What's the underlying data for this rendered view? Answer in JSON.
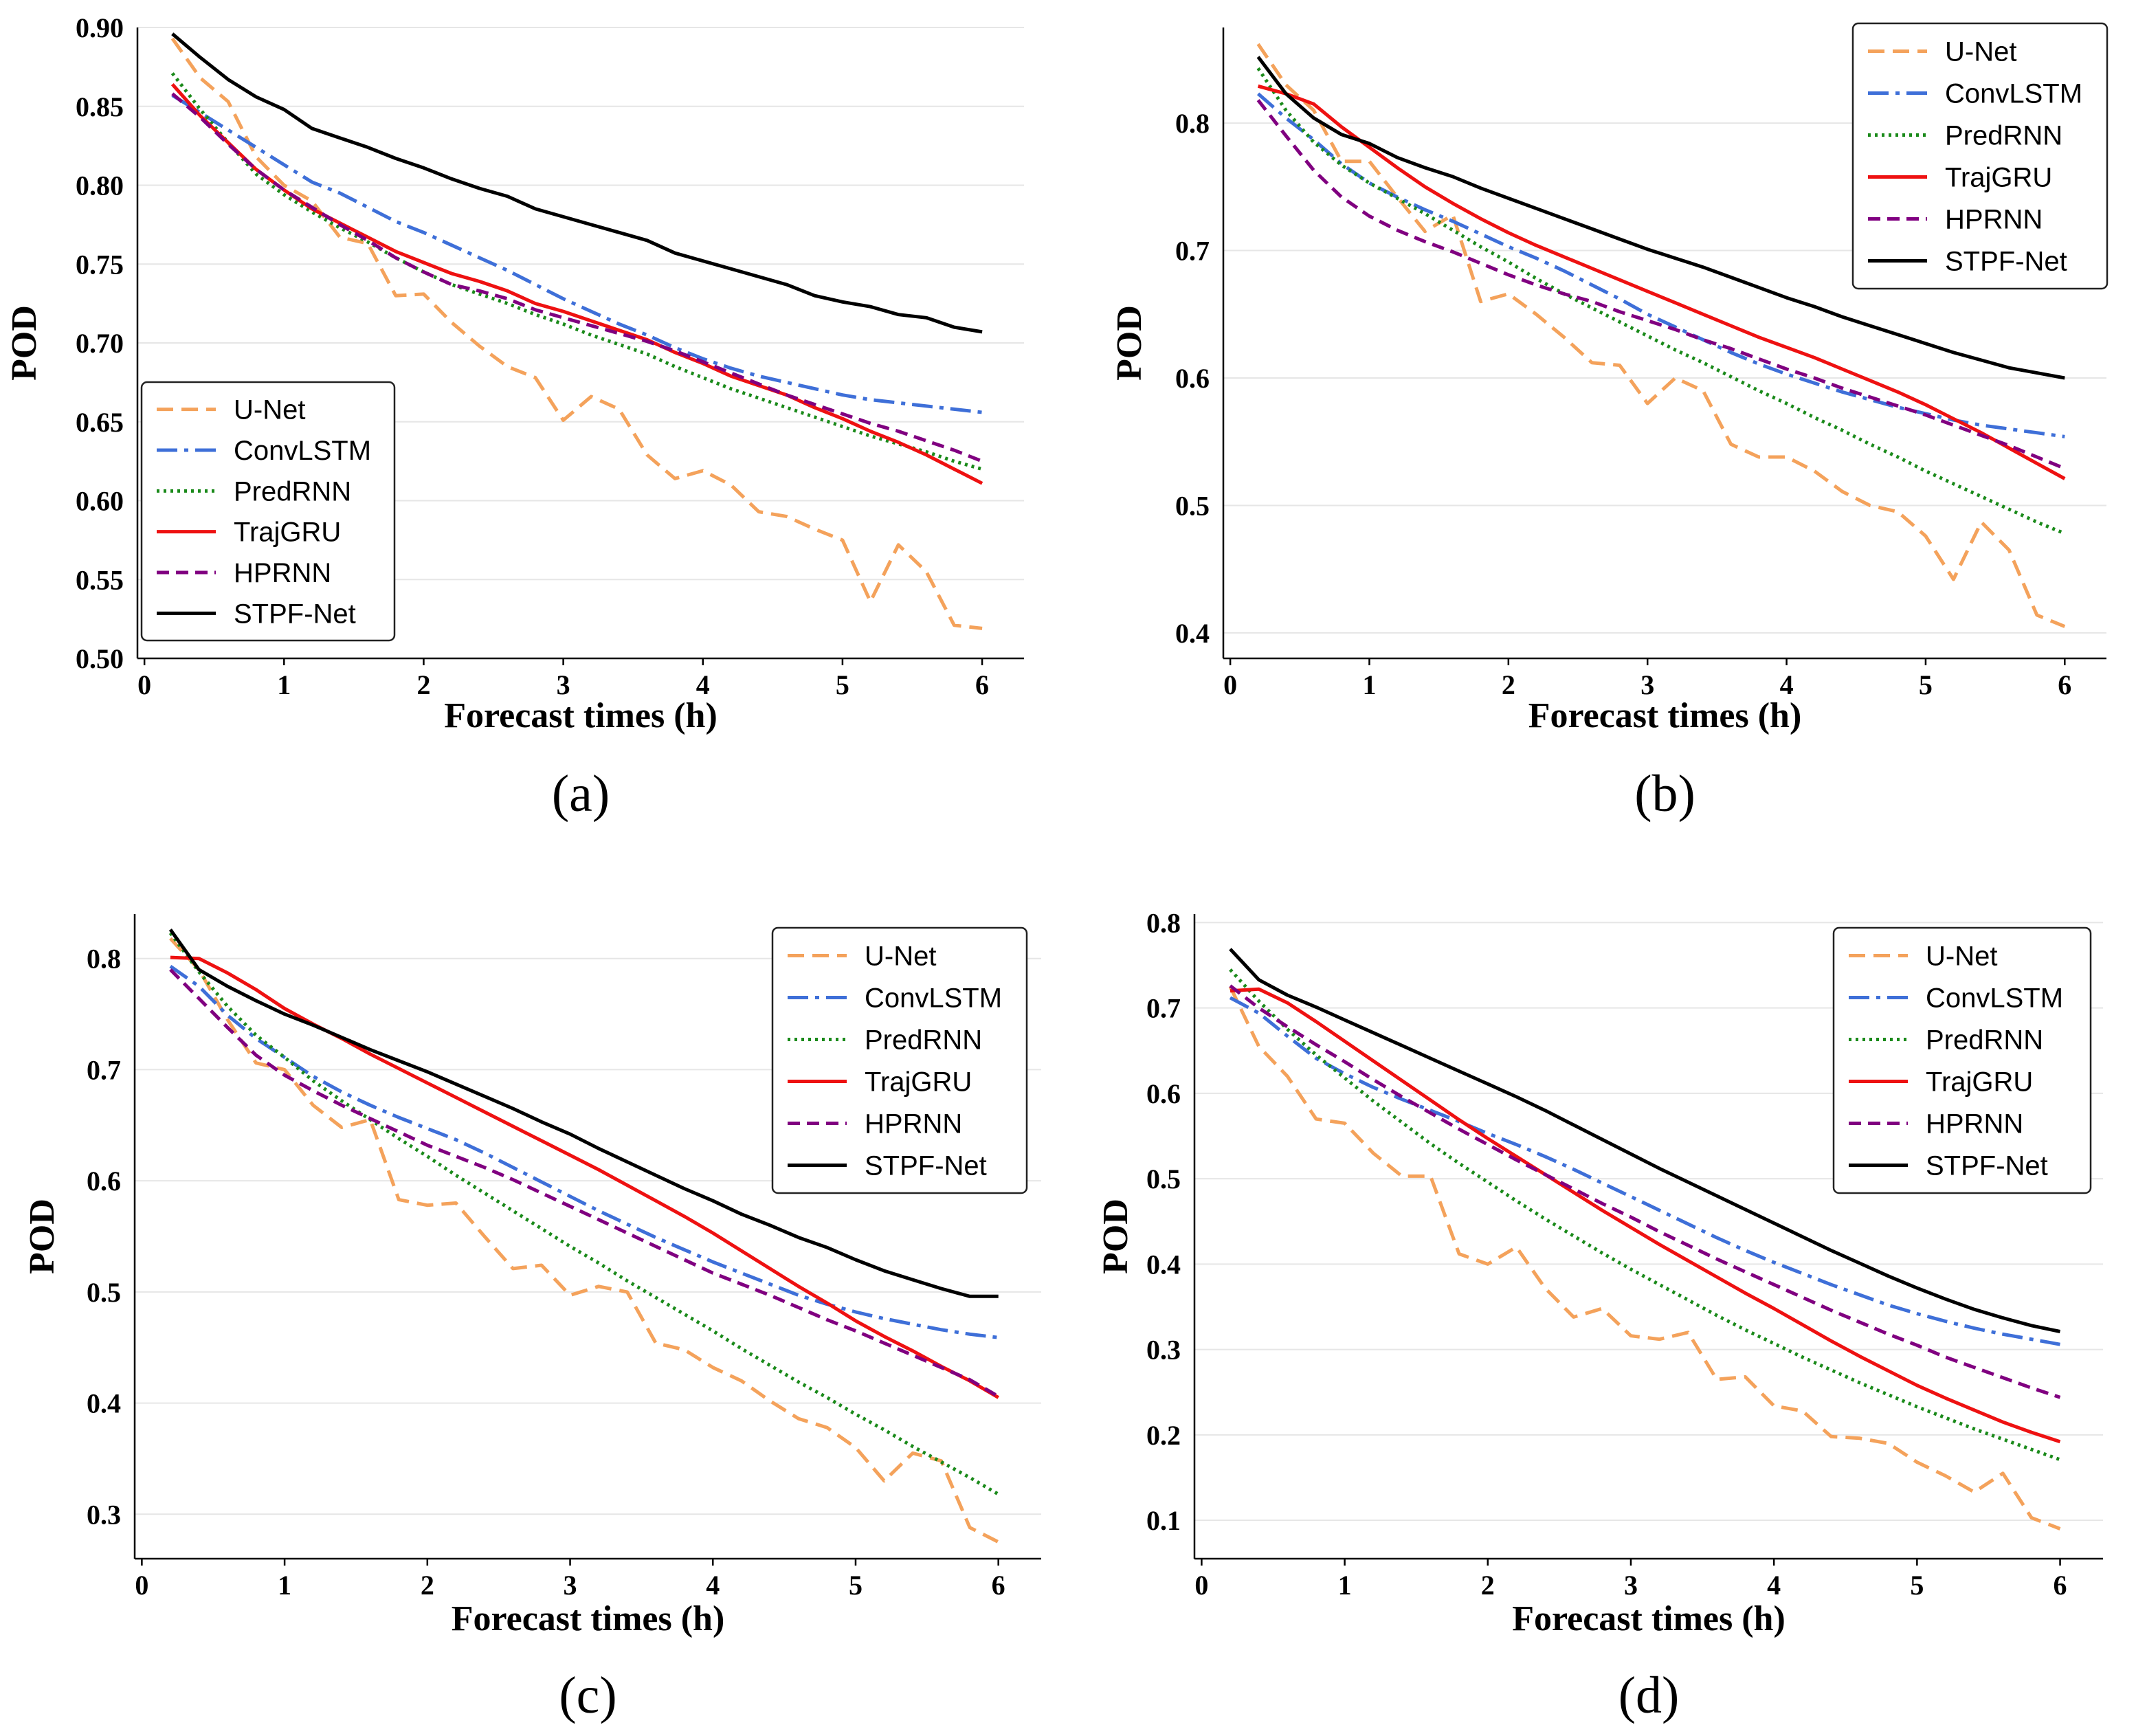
{
  "chart_data": [
    {
      "type": "line",
      "caption": "(a)",
      "xlabel": "Forecast times (h)",
      "ylabel": "POD",
      "xlim": [
        -0.05,
        6.3
      ],
      "ylim": [
        0.5,
        0.9
      ],
      "xticks": [
        "0",
        "1",
        "2",
        "3",
        "4",
        "5",
        "6"
      ],
      "yticks": [
        "0.50",
        "0.55",
        "0.60",
        "0.65",
        "0.70",
        "0.75",
        "0.80",
        "0.85",
        "0.90"
      ],
      "legend_position": "lower-left",
      "x": [
        0.2,
        0.4,
        0.6,
        0.8,
        1.0,
        1.2,
        1.4,
        1.6,
        1.8,
        2.0,
        2.2,
        2.4,
        2.6,
        2.8,
        3.0,
        3.2,
        3.4,
        3.6,
        3.8,
        4.0,
        4.2,
        4.4,
        4.6,
        4.8,
        5.0,
        5.2,
        5.4,
        5.6,
        5.8,
        6.0
      ],
      "series": [
        {
          "name": "U-Net",
          "values": [
            0.893,
            0.868,
            0.853,
            0.818,
            0.8,
            0.79,
            0.767,
            0.763,
            0.73,
            0.731,
            0.713,
            0.698,
            0.685,
            0.678,
            0.651,
            0.666,
            0.658,
            0.629,
            0.614,
            0.619,
            0.61,
            0.593,
            0.59,
            0.582,
            0.575,
            0.536,
            0.572,
            0.555,
            0.521,
            0.519
          ]
        },
        {
          "name": "ConvLSTM",
          "values": [
            0.857,
            0.846,
            0.835,
            0.824,
            0.813,
            0.802,
            0.795,
            0.786,
            0.777,
            0.77,
            0.762,
            0.754,
            0.746,
            0.737,
            0.728,
            0.72,
            0.712,
            0.705,
            0.697,
            0.69,
            0.684,
            0.679,
            0.675,
            0.671,
            0.667,
            0.664,
            0.662,
            0.66,
            0.658,
            0.656
          ]
        },
        {
          "name": "PredRNN",
          "values": [
            0.871,
            0.848,
            0.827,
            0.807,
            0.794,
            0.783,
            0.773,
            0.764,
            0.754,
            0.745,
            0.737,
            0.731,
            0.725,
            0.718,
            0.712,
            0.705,
            0.699,
            0.693,
            0.685,
            0.678,
            0.671,
            0.665,
            0.659,
            0.653,
            0.647,
            0.641,
            0.636,
            0.631,
            0.625,
            0.62
          ]
        },
        {
          "name": "TrajGRU",
          "values": [
            0.864,
            0.844,
            0.827,
            0.81,
            0.797,
            0.785,
            0.776,
            0.767,
            0.758,
            0.751,
            0.744,
            0.739,
            0.733,
            0.725,
            0.72,
            0.714,
            0.708,
            0.702,
            0.694,
            0.687,
            0.679,
            0.673,
            0.667,
            0.659,
            0.652,
            0.644,
            0.637,
            0.629,
            0.62,
            0.611
          ]
        },
        {
          "name": "HPRNN",
          "values": [
            0.858,
            0.843,
            0.826,
            0.81,
            0.797,
            0.786,
            0.775,
            0.765,
            0.754,
            0.745,
            0.737,
            0.733,
            0.728,
            0.721,
            0.716,
            0.711,
            0.706,
            0.701,
            0.695,
            0.688,
            0.681,
            0.674,
            0.667,
            0.661,
            0.655,
            0.649,
            0.644,
            0.638,
            0.632,
            0.625
          ]
        },
        {
          "name": "STPF-Net",
          "values": [
            0.896,
            0.881,
            0.867,
            0.856,
            0.848,
            0.836,
            0.83,
            0.824,
            0.817,
            0.811,
            0.804,
            0.798,
            0.793,
            0.785,
            0.78,
            0.775,
            0.77,
            0.765,
            0.757,
            0.752,
            0.747,
            0.742,
            0.737,
            0.73,
            0.726,
            0.723,
            0.718,
            0.716,
            0.71,
            0.707
          ]
        }
      ]
    },
    {
      "type": "line",
      "caption": "(b)",
      "xlabel": "Forecast times (h)",
      "ylabel": "POD",
      "xlim": [
        -0.05,
        6.3
      ],
      "ylim": [
        0.38,
        0.875
      ],
      "xticks": [
        "0",
        "1",
        "2",
        "3",
        "4",
        "5",
        "6"
      ],
      "yticks": [
        "0.4",
        "0.5",
        "0.6",
        "0.7",
        "0.8"
      ],
      "legend_position": "upper-right",
      "x": [
        0.2,
        0.4,
        0.6,
        0.8,
        1.0,
        1.2,
        1.4,
        1.6,
        1.8,
        2.0,
        2.2,
        2.4,
        2.6,
        2.8,
        3.0,
        3.2,
        3.4,
        3.6,
        3.8,
        4.0,
        4.2,
        4.4,
        4.6,
        4.8,
        5.0,
        5.2,
        5.4,
        5.6,
        5.8,
        6.0
      ],
      "series": [
        {
          "name": "U-Net",
          "values": [
            0.862,
            0.83,
            0.81,
            0.77,
            0.77,
            0.742,
            0.715,
            0.728,
            0.66,
            0.666,
            0.65,
            0.632,
            0.612,
            0.61,
            0.58,
            0.6,
            0.59,
            0.548,
            0.538,
            0.538,
            0.527,
            0.511,
            0.5,
            0.495,
            0.476,
            0.442,
            0.487,
            0.465,
            0.414,
            0.405
          ]
        },
        {
          "name": "ConvLSTM",
          "values": [
            0.823,
            0.804,
            0.787,
            0.768,
            0.753,
            0.742,
            0.732,
            0.723,
            0.713,
            0.703,
            0.694,
            0.684,
            0.673,
            0.662,
            0.65,
            0.64,
            0.63,
            0.62,
            0.611,
            0.603,
            0.596,
            0.589,
            0.583,
            0.577,
            0.572,
            0.567,
            0.563,
            0.56,
            0.557,
            0.554
          ]
        },
        {
          "name": "PredRNN",
          "values": [
            0.843,
            0.81,
            0.785,
            0.767,
            0.753,
            0.741,
            0.729,
            0.716,
            0.703,
            0.691,
            0.678,
            0.666,
            0.655,
            0.644,
            0.633,
            0.622,
            0.612,
            0.601,
            0.59,
            0.58,
            0.569,
            0.559,
            0.548,
            0.538,
            0.527,
            0.517,
            0.507,
            0.497,
            0.487,
            0.478
          ]
        },
        {
          "name": "TrajGRU",
          "values": [
            0.829,
            0.823,
            0.815,
            0.797,
            0.781,
            0.765,
            0.75,
            0.737,
            0.725,
            0.714,
            0.704,
            0.695,
            0.686,
            0.677,
            0.668,
            0.659,
            0.65,
            0.641,
            0.632,
            0.624,
            0.616,
            0.607,
            0.598,
            0.589,
            0.579,
            0.568,
            0.557,
            0.545,
            0.533,
            0.521
          ]
        },
        {
          "name": "HPRNN",
          "values": [
            0.818,
            0.79,
            0.763,
            0.742,
            0.727,
            0.716,
            0.707,
            0.699,
            0.69,
            0.681,
            0.673,
            0.666,
            0.66,
            0.652,
            0.645,
            0.638,
            0.63,
            0.623,
            0.615,
            0.607,
            0.6,
            0.592,
            0.585,
            0.578,
            0.571,
            0.563,
            0.555,
            0.547,
            0.538,
            0.529
          ]
        },
        {
          "name": "STPF-Net",
          "values": [
            0.852,
            0.823,
            0.804,
            0.791,
            0.784,
            0.773,
            0.765,
            0.758,
            0.749,
            0.741,
            0.733,
            0.725,
            0.717,
            0.709,
            0.701,
            0.694,
            0.687,
            0.679,
            0.671,
            0.663,
            0.656,
            0.648,
            0.641,
            0.634,
            0.627,
            0.62,
            0.614,
            0.608,
            0.604,
            0.6
          ]
        }
      ]
    },
    {
      "type": "line",
      "caption": "(c)",
      "xlabel": "Forecast times (h)",
      "ylabel": "POD",
      "xlim": [
        -0.05,
        6.3
      ],
      "ylim": [
        0.26,
        0.84
      ],
      "xticks": [
        "0",
        "1",
        "2",
        "3",
        "4",
        "5",
        "6"
      ],
      "yticks": [
        "0.3",
        "0.4",
        "0.5",
        "0.6",
        "0.7",
        "0.8"
      ],
      "legend_position": "upper-right",
      "x": [
        0.2,
        0.4,
        0.6,
        0.8,
        1.0,
        1.2,
        1.4,
        1.6,
        1.8,
        2.0,
        2.2,
        2.4,
        2.6,
        2.8,
        3.0,
        3.2,
        3.4,
        3.6,
        3.8,
        4.0,
        4.2,
        4.4,
        4.6,
        4.8,
        5.0,
        5.2,
        5.4,
        5.6,
        5.8,
        6.0
      ],
      "series": [
        {
          "name": "U-Net",
          "values": [
            0.818,
            0.79,
            0.745,
            0.706,
            0.7,
            0.668,
            0.648,
            0.655,
            0.583,
            0.578,
            0.58,
            0.55,
            0.521,
            0.524,
            0.497,
            0.505,
            0.5,
            0.454,
            0.448,
            0.432,
            0.42,
            0.402,
            0.386,
            0.378,
            0.36,
            0.33,
            0.355,
            0.348,
            0.288,
            0.275
          ]
        },
        {
          "name": "ConvLSTM",
          "values": [
            0.793,
            0.775,
            0.749,
            0.728,
            0.711,
            0.694,
            0.68,
            0.668,
            0.657,
            0.647,
            0.637,
            0.625,
            0.612,
            0.599,
            0.586,
            0.573,
            0.561,
            0.549,
            0.538,
            0.527,
            0.517,
            0.507,
            0.497,
            0.489,
            0.482,
            0.476,
            0.471,
            0.466,
            0.462,
            0.459
          ]
        },
        {
          "name": "PredRNN",
          "values": [
            0.823,
            0.788,
            0.757,
            0.731,
            0.711,
            0.69,
            0.672,
            0.655,
            0.638,
            0.622,
            0.605,
            0.589,
            0.573,
            0.557,
            0.541,
            0.526,
            0.51,
            0.495,
            0.48,
            0.465,
            0.449,
            0.434,
            0.419,
            0.405,
            0.39,
            0.376,
            0.361,
            0.347,
            0.333,
            0.318
          ]
        },
        {
          "name": "TrajGRU",
          "values": [
            0.801,
            0.8,
            0.787,
            0.772,
            0.755,
            0.741,
            0.728,
            0.714,
            0.701,
            0.688,
            0.675,
            0.662,
            0.649,
            0.636,
            0.623,
            0.61,
            0.596,
            0.582,
            0.568,
            0.553,
            0.537,
            0.521,
            0.505,
            0.49,
            0.474,
            0.46,
            0.447,
            0.433,
            0.42,
            0.405
          ]
        },
        {
          "name": "HPRNN",
          "values": [
            0.79,
            0.764,
            0.738,
            0.713,
            0.695,
            0.681,
            0.668,
            0.656,
            0.644,
            0.632,
            0.622,
            0.612,
            0.601,
            0.589,
            0.577,
            0.565,
            0.553,
            0.541,
            0.529,
            0.517,
            0.507,
            0.497,
            0.486,
            0.475,
            0.465,
            0.454,
            0.443,
            0.432,
            0.421,
            0.406
          ]
        },
        {
          "name": "STPF-Net",
          "values": [
            0.826,
            0.79,
            0.775,
            0.762,
            0.75,
            0.74,
            0.729,
            0.718,
            0.708,
            0.698,
            0.687,
            0.676,
            0.665,
            0.653,
            0.642,
            0.629,
            0.617,
            0.605,
            0.593,
            0.582,
            0.57,
            0.56,
            0.549,
            0.54,
            0.529,
            0.519,
            0.511,
            0.503,
            0.496,
            0.496
          ]
        }
      ]
    },
    {
      "type": "line",
      "caption": "(d)",
      "xlabel": "Forecast times (h)",
      "ylabel": "POD",
      "xlim": [
        -0.05,
        6.3
      ],
      "ylim": [
        0.055,
        0.81
      ],
      "xticks": [
        "0",
        "1",
        "2",
        "3",
        "4",
        "5",
        "6"
      ],
      "yticks": [
        "0.1",
        "0.2",
        "0.3",
        "0.4",
        "0.5",
        "0.6",
        "0.7",
        "0.8"
      ],
      "legend_position": "upper-right",
      "x": [
        0.2,
        0.4,
        0.6,
        0.8,
        1.0,
        1.2,
        1.4,
        1.6,
        1.8,
        2.0,
        2.2,
        2.4,
        2.6,
        2.8,
        3.0,
        3.2,
        3.4,
        3.6,
        3.8,
        4.0,
        4.2,
        4.4,
        4.6,
        4.8,
        5.0,
        5.2,
        5.4,
        5.6,
        5.8,
        6.0
      ],
      "series": [
        {
          "name": "U-Net",
          "values": [
            0.725,
            0.655,
            0.62,
            0.57,
            0.565,
            0.53,
            0.503,
            0.503,
            0.412,
            0.4,
            0.42,
            0.372,
            0.338,
            0.348,
            0.316,
            0.312,
            0.32,
            0.265,
            0.268,
            0.234,
            0.228,
            0.198,
            0.196,
            0.19,
            0.168,
            0.152,
            0.133,
            0.155,
            0.103,
            0.09
          ]
        },
        {
          "name": "ConvLSTM",
          "values": [
            0.712,
            0.694,
            0.667,
            0.641,
            0.623,
            0.607,
            0.593,
            0.58,
            0.567,
            0.553,
            0.54,
            0.526,
            0.511,
            0.495,
            0.479,
            0.463,
            0.447,
            0.431,
            0.416,
            0.402,
            0.389,
            0.376,
            0.364,
            0.352,
            0.342,
            0.333,
            0.325,
            0.318,
            0.312,
            0.306
          ]
        },
        {
          "name": "PredRNN",
          "values": [
            0.745,
            0.708,
            0.675,
            0.645,
            0.618,
            0.591,
            0.566,
            0.541,
            0.518,
            0.496,
            0.474,
            0.453,
            0.433,
            0.413,
            0.394,
            0.376,
            0.358,
            0.34,
            0.323,
            0.307,
            0.291,
            0.276,
            0.261,
            0.247,
            0.233,
            0.22,
            0.207,
            0.195,
            0.183,
            0.171
          ]
        },
        {
          "name": "TrajGRU",
          "values": [
            0.72,
            0.722,
            0.706,
            0.684,
            0.661,
            0.638,
            0.615,
            0.592,
            0.569,
            0.547,
            0.526,
            0.505,
            0.484,
            0.463,
            0.443,
            0.423,
            0.404,
            0.385,
            0.366,
            0.348,
            0.329,
            0.31,
            0.292,
            0.275,
            0.258,
            0.243,
            0.229,
            0.215,
            0.203,
            0.192
          ]
        },
        {
          "name": "HPRNN",
          "values": [
            0.726,
            0.7,
            0.678,
            0.657,
            0.637,
            0.616,
            0.596,
            0.577,
            0.558,
            0.54,
            0.522,
            0.505,
            0.488,
            0.471,
            0.455,
            0.438,
            0.422,
            0.406,
            0.391,
            0.376,
            0.361,
            0.346,
            0.332,
            0.318,
            0.305,
            0.291,
            0.279,
            0.267,
            0.255,
            0.244
          ]
        },
        {
          "name": "STPF-Net",
          "values": [
            0.769,
            0.733,
            0.715,
            0.701,
            0.686,
            0.671,
            0.656,
            0.641,
            0.626,
            0.611,
            0.596,
            0.58,
            0.563,
            0.546,
            0.529,
            0.512,
            0.496,
            0.48,
            0.464,
            0.448,
            0.432,
            0.416,
            0.401,
            0.386,
            0.372,
            0.359,
            0.347,
            0.337,
            0.328,
            0.321
          ]
        }
      ]
    }
  ],
  "styles": {
    "U-Net": {
      "color": "#f4a25b",
      "dash": "24,12"
    },
    "ConvLSTM": {
      "color": "#3e6fd8",
      "dash": "30,10,6,10"
    },
    "PredRNN": {
      "color": "#1a8a1a",
      "dash": "4,6"
    },
    "TrajGRU": {
      "color": "#ee1111",
      "dash": ""
    },
    "HPRNN": {
      "color": "#800080",
      "dash": "18,10"
    },
    "STPF-Net": {
      "color": "#000000",
      "dash": ""
    }
  }
}
